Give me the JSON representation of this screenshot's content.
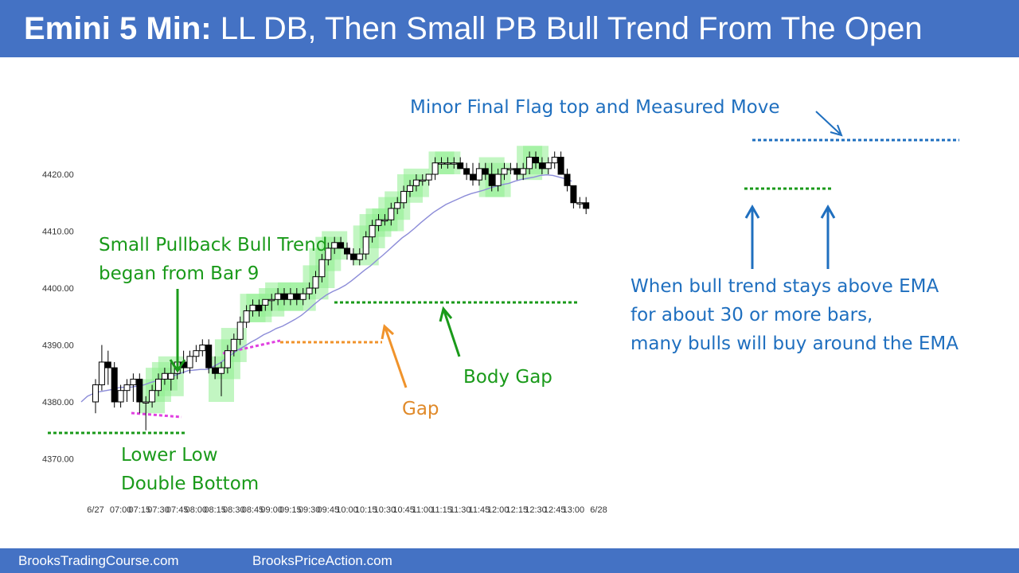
{
  "header": {
    "title_bold": "Emini 5 Min:",
    "title_rest": " LL DB, Then Small PB Bull Trend From The Open"
  },
  "footer": {
    "left": "BrooksTradingCourse.com",
    "right": "BrooksPriceAction.com"
  },
  "colors": {
    "header_bg": "#4472c4",
    "green_annotation": "#1a9a1a",
    "blue_annotation": "#1f6fbf",
    "orange_annotation": "#f0932b",
    "magenta": "#e040e0",
    "ema": "#8c8cd8",
    "highlight": "#90ee90"
  },
  "annotations": {
    "measured_move": "Minor Final Flag top and Measured Move",
    "small_pb_line1": "Small Pullback Bull Trend",
    "small_pb_line2": "began from Bar 9",
    "gap": "Gap",
    "body_gap": "Body Gap",
    "lower_low_line1": "Lower Low",
    "lower_low_line2": "Double Bottom",
    "ema_line1": "When bull trend stays above EMA",
    "ema_line2": "for about 30 or more bars,",
    "ema_line3": "many bulls will buy around the EMA"
  },
  "chart_data": {
    "type": "candlestick",
    "yticks": [
      "4420.00",
      "4410.00",
      "4400.00",
      "4390.00",
      "4380.00",
      "4370.00"
    ],
    "ytick_values": [
      4420,
      4410,
      4400,
      4390,
      4380,
      4370
    ],
    "ylim": [
      4367,
      4432
    ],
    "xticks": [
      "6/27",
      "07:00",
      "07:15",
      "07:30",
      "07:45",
      "08:00",
      "08:15",
      "08:30",
      "08:45",
      "09:00",
      "09:15",
      "09:30",
      "09:45",
      "10:00",
      "10:15",
      "10:30",
      "10:45",
      "11:00",
      "11:15",
      "11:30",
      "11:45",
      "12:00",
      "12:15",
      "12:30",
      "12:45",
      "13:00",
      "6/28"
    ],
    "xtick_bar_index": [
      0,
      4,
      7,
      10,
      13,
      16,
      19,
      22,
      25,
      28,
      31,
      34,
      37,
      40,
      43,
      46,
      49,
      52,
      55,
      58,
      61,
      64,
      67,
      70,
      73,
      76,
      80
    ],
    "bars_ohlc": [
      [
        4380,
        4384,
        4378,
        4383
      ],
      [
        4383,
        4390,
        4382,
        4387
      ],
      [
        4387,
        4389,
        4383,
        4386
      ],
      [
        4386,
        4387,
        4379,
        4380
      ],
      [
        4380,
        4383,
        4379,
        4382
      ],
      [
        4382,
        4384,
        4380,
        4383
      ],
      [
        4383,
        4385,
        4380,
        4384
      ],
      [
        4384,
        4385,
        4378,
        4380
      ],
      [
        4380,
        4381,
        4375,
        4380
      ],
      [
        4380,
        4383,
        4379,
        4382
      ],
      [
        4382,
        4385,
        4381,
        4384
      ],
      [
        4384,
        4386,
        4383,
        4385
      ],
      [
        4384,
        4387,
        4382,
        4385
      ],
      [
        4385,
        4388,
        4384,
        4387
      ],
      [
        4387,
        4389,
        4385,
        4386
      ],
      [
        4386,
        4389,
        4385,
        4388
      ],
      [
        4388,
        4390,
        4387,
        4389
      ],
      [
        4389,
        4391,
        4388,
        4390
      ],
      [
        4390,
        4391,
        4385,
        4386
      ],
      [
        4386,
        4388,
        4384,
        4385
      ],
      [
        4385,
        4387,
        4381,
        4386
      ],
      [
        4386,
        4390,
        4385,
        4389
      ],
      [
        4389,
        4392,
        4388,
        4391
      ],
      [
        4391,
        4395,
        4390,
        4394
      ],
      [
        4394,
        4397,
        4393,
        4396
      ],
      [
        4396,
        4398,
        4395,
        4397
      ],
      [
        4397,
        4398,
        4395,
        4396
      ],
      [
        4397,
        4398,
        4396,
        4398
      ],
      [
        4398,
        4399,
        4396,
        4398
      ],
      [
        4398,
        4400,
        4397,
        4399
      ],
      [
        4399,
        4400,
        4397,
        4398
      ],
      [
        4398,
        4400,
        4397,
        4399
      ],
      [
        4399,
        4400,
        4397,
        4398
      ],
      [
        4398,
        4400,
        4397,
        4399
      ],
      [
        4399,
        4401,
        4398,
        4400
      ],
      [
        4400,
        4403,
        4399,
        4402
      ],
      [
        4402,
        4406,
        4401,
        4405
      ],
      [
        4405,
        4408,
        4404,
        4407
      ],
      [
        4407,
        4409,
        4406,
        4408
      ],
      [
        4408,
        4409,
        4407,
        4407
      ],
      [
        4407,
        4408,
        4405,
        4406
      ],
      [
        4406,
        4407,
        4404,
        4405
      ],
      [
        4405,
        4407,
        4404,
        4406
      ],
      [
        4406,
        4410,
        4405,
        4409
      ],
      [
        4409,
        4412,
        4408,
        4411
      ],
      [
        4411,
        4413,
        4410,
        4412
      ],
      [
        4412,
        4413,
        4411,
        4412
      ],
      [
        4412,
        4415,
        4411,
        4414
      ],
      [
        4414,
        4416,
        4413,
        4415
      ],
      [
        4415,
        4418,
        4414,
        4417
      ],
      [
        4417,
        4419,
        4416,
        4418
      ],
      [
        4418,
        4420,
        4417,
        4419
      ],
      [
        4419,
        4420,
        4418,
        4419
      ],
      [
        4419,
        4420,
        4418,
        4420
      ],
      [
        4420,
        4423,
        4419,
        4422
      ],
      [
        4422,
        4423,
        4421,
        4422
      ],
      [
        4422,
        4423,
        4421,
        4422
      ],
      [
        4422,
        4423,
        4421,
        4422
      ],
      [
        4422,
        4423,
        4421,
        4421
      ],
      [
        4421,
        4422,
        4419,
        4420
      ],
      [
        4420,
        4422,
        4418,
        4419
      ],
      [
        4419,
        4422,
        4418,
        4421
      ],
      [
        4421,
        4422,
        4419,
        4420
      ],
      [
        4420,
        4422,
        4417,
        4418
      ],
      [
        4418,
        4421,
        4417,
        4420
      ],
      [
        4420,
        4422,
        4419,
        4421
      ],
      [
        4421,
        4422,
        4420,
        4421
      ],
      [
        4421,
        4422,
        4419,
        4420
      ],
      [
        4420,
        4422,
        4419,
        4421
      ],
      [
        4421,
        4424,
        4420,
        4423
      ],
      [
        4423,
        4424,
        4421,
        4422
      ],
      [
        4422,
        4423,
        4420,
        4421
      ],
      [
        4421,
        4423,
        4420,
        4422
      ],
      [
        4422,
        4424,
        4421,
        4423
      ],
      [
        4423,
        4424,
        4420,
        4420
      ],
      [
        4420,
        4421,
        4417,
        4418
      ],
      [
        4418,
        4418,
        4414,
        4415
      ],
      [
        4415,
        4416,
        4414,
        4415
      ],
      [
        4415,
        4416,
        4413,
        4414
      ]
    ],
    "ema": [
      4380,
      4381,
      4381.5,
      4381.8,
      4382,
      4382.2,
      4382.5,
      4382.6,
      4382.6,
      4382.8,
      4383,
      4383.4,
      4383.7,
      4384.1,
      4384.3,
      4384.7,
      4385.1,
      4385.5,
      4385.6,
      4385.7,
      4385.7,
      4386.2,
      4386.8,
      4387.6,
      4388.4,
      4389.2,
      4389.8,
      4390.5,
      4391.1,
      4391.8,
      4392.3,
      4392.9,
      4393.3,
      4393.9,
      4394.5,
      4395.2,
      4396.1,
      4397.1,
      4398,
      4398.8,
      4399.4,
      4399.9,
      4400.5,
      4401.3,
      4402.2,
      4403.1,
      4403.9,
      4404.9,
      4405.8,
      4406.8,
      4407.8,
      4408.8,
      4409.6,
      4410.5,
      4411.5,
      4412.4,
      4413.3,
      4414,
      4414.7,
      4415.2,
      4415.7,
      4416.2,
      4416.6,
      4416.9,
      4417.2,
      4417.6,
      4417.9,
      4418.2,
      4418.4,
      4418.8,
      4419.1,
      4419.3,
      4419.5,
      4419.8,
      4419.9,
      4419.8,
      4419.5,
      4419.2,
      4418.8
    ],
    "highlighted_bars": [
      9,
      10,
      11,
      12,
      20,
      21,
      22,
      25,
      26,
      28,
      29,
      31,
      33,
      35,
      36,
      37,
      38,
      43,
      44,
      45,
      46,
      47,
      48,
      50,
      51,
      55,
      56,
      63,
      64,
      69,
      70
    ]
  }
}
